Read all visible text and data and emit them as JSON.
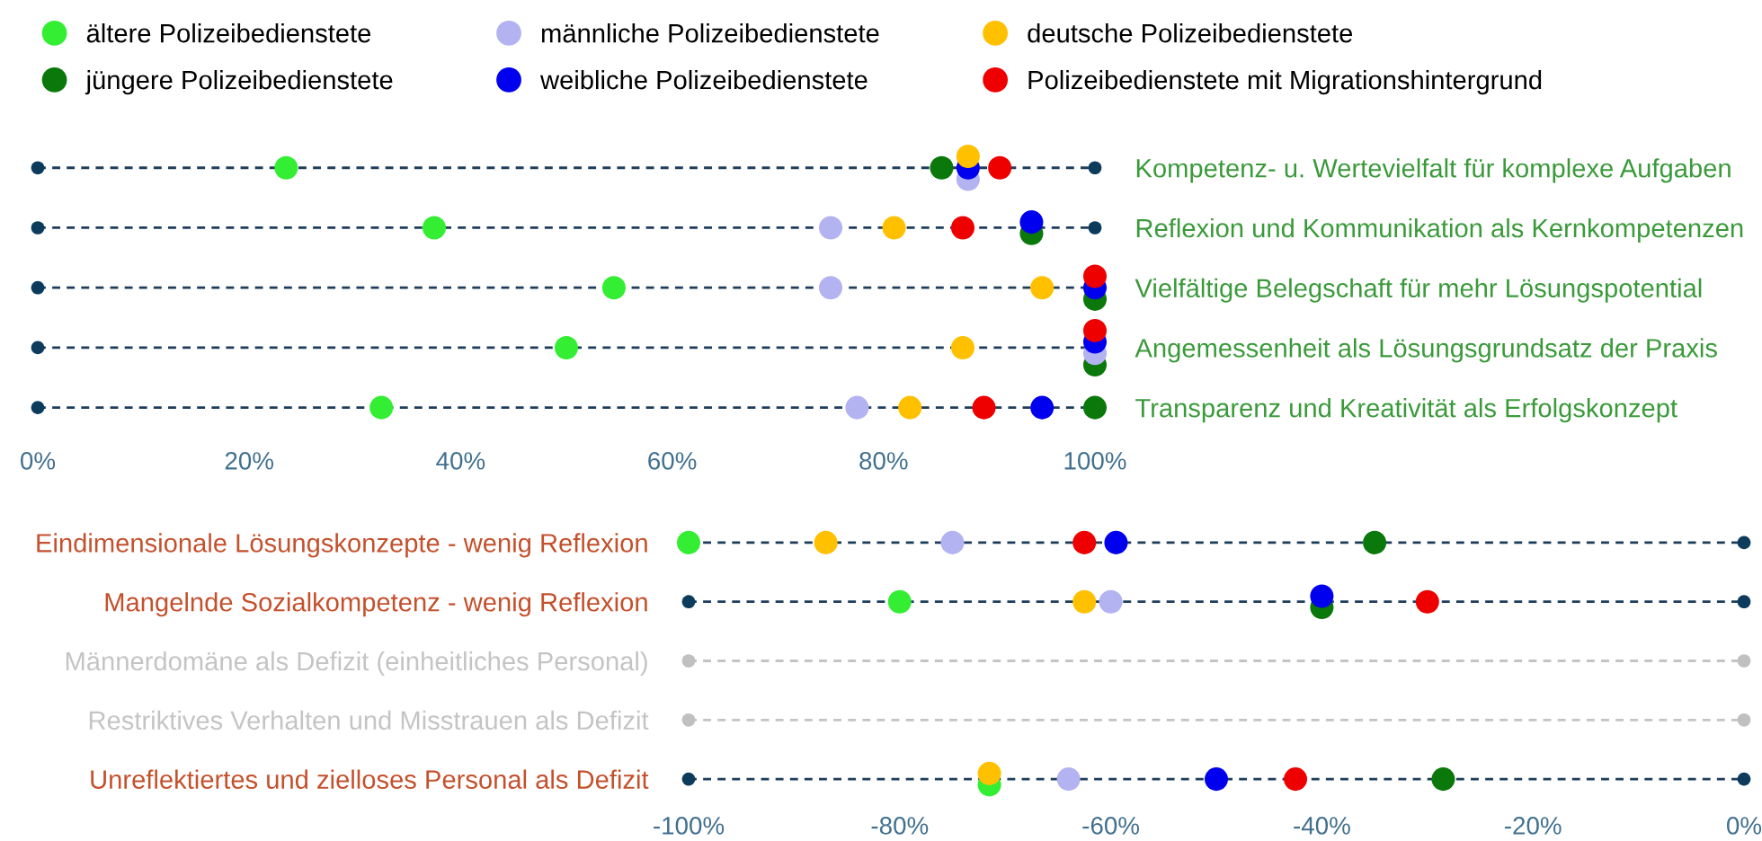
{
  "chart_data": [
    {
      "type": "scatter",
      "orientation": "horizontal",
      "marker": "circle",
      "grid": "y",
      "legend": "top",
      "categories": [
        "Kompetenz- u. Wertevielfalt für komplexe Aufgaben",
        "Reflexion und Kommunikation als Kernkompetenzen",
        "Vielfältige Belegschaft für mehr Lösungspotential",
        "Angemessenheit als Lösungsgrundsatz der Praxis",
        "Transparenz und Kreativität als Erfolgskonzept"
      ],
      "xlim": [
        0,
        100
      ],
      "xticks": [
        {
          "value": 0,
          "label": "0%"
        },
        {
          "value": 20,
          "label": "20%"
        },
        {
          "value": 40,
          "label": "40%"
        },
        {
          "value": 60,
          "label": "60%"
        },
        {
          "value": 80,
          "label": "80%"
        },
        {
          "value": 100,
          "label": "100%"
        }
      ],
      "series": [
        {
          "name": "ältere Polizeibedienstete",
          "color": "#33ee33",
          "values": [
            23.5,
            37.5,
            54.5,
            50,
            32.5
          ]
        },
        {
          "name": "jüngere Polizeibedienstete",
          "color": "#0b780b",
          "values": [
            85.5,
            94,
            100,
            100,
            100
          ]
        },
        {
          "name": "männliche Polizeibedienstete",
          "color": "#b3b3f2",
          "values": [
            88,
            75,
            75,
            100,
            77.5
          ]
        },
        {
          "name": "weibliche Polizeibedienstete",
          "color": "#0000ee",
          "values": [
            88,
            94,
            100,
            100,
            95
          ]
        },
        {
          "name": "deutsche Polizeibedienstete",
          "color": "#ffc000",
          "values": [
            88,
            81,
            95,
            87.5,
            82.5
          ]
        },
        {
          "name": "Polizeibedienstete mit Migrationshintergrund",
          "color": "#ee0000",
          "values": [
            91,
            87.5,
            100,
            100,
            89.5
          ]
        },
        {
          "colors": [
            "#0d3b5c",
            "#0d3b5c",
            "#0d3b5c",
            "#0d3b5c",
            "#0d3b5c"
          ],
          "values": [
            0,
            0,
            0,
            0,
            0
          ]
        },
        {
          "colors": [
            "#0d3b5c",
            "#0d3b5c",
            "#0d3b5c",
            "#0d3b5c",
            "#0d3b5c"
          ],
          "values": [
            100,
            100,
            null,
            null,
            null
          ]
        }
      ]
    },
    {
      "type": "scatter",
      "orientation": "horizontal",
      "marker": "circle",
      "grid": "y",
      "categories": [
        "Eindimensionale Lösungskonzepte - wenig Reflexion",
        "Mangelnde Sozialkompetenz - wenig Reflexion",
        "Männerdomäne als Defizit (einheitliches Personal)",
        "Restriktives Verhalten und Misstrauen als Defizit",
        "Unreflektiertes und zielloses Personal als Defizit"
      ],
      "xlim": [
        -100,
        0
      ],
      "xticks": [
        {
          "value": -100,
          "label": "-100%"
        },
        {
          "value": -80,
          "label": "-80%"
        },
        {
          "value": -60,
          "label": "-60%"
        },
        {
          "value": -40,
          "label": "-40%"
        },
        {
          "value": -20,
          "label": "-20%"
        },
        {
          "value": 0,
          "label": "0%"
        }
      ],
      "series": [
        {
          "color": "#33ee33",
          "values": [
            -100,
            -80,
            null,
            null,
            -71.5
          ]
        },
        {
          "color": "#0b780b",
          "values": [
            -35,
            -40,
            null,
            null,
            -28.5
          ]
        },
        {
          "color": "#b3b3f2",
          "values": [
            -75,
            -60,
            null,
            null,
            -64
          ]
        },
        {
          "color": "#0000ee",
          "values": [
            -59.5,
            -40,
            null,
            null,
            -50
          ]
        },
        {
          "color": "#ffc000",
          "values": [
            -87,
            -62.5,
            null,
            null,
            -71.5
          ]
        },
        {
          "color": "#ee0000",
          "values": [
            -62.5,
            -30,
            null,
            null,
            -42.5
          ]
        },
        {
          "colors": [
            "#0d3b5c",
            "#0d3b5c",
            "#c0c0c0",
            "#c0c0c0",
            "#0d3b5c"
          ],
          "values": [
            null,
            -100,
            -100,
            -100,
            -100
          ]
        },
        {
          "colors": [
            "#0d3b5c",
            "#0d3b5c",
            "#c0c0c0",
            "#c0c0c0",
            "#0d3b5c"
          ],
          "values": [
            0,
            0,
            0,
            0,
            0
          ]
        }
      ]
    }
  ]
}
